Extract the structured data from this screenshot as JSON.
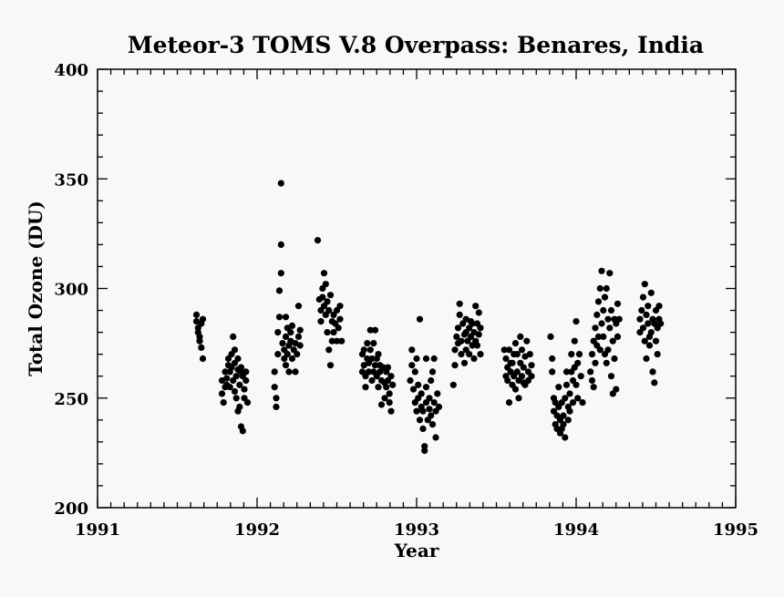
{
  "chart_data": {
    "type": "scatter",
    "title": "Meteor-3 TOMS V.8 Overpass: Benares, India",
    "xlabel": "Year",
    "ylabel": "Total Ozone (DU)",
    "xlim": [
      1991,
      1995
    ],
    "ylim": [
      200,
      400
    ],
    "x_ticks": [
      1991,
      1992,
      1993,
      1994,
      1995
    ],
    "y_ticks": [
      200,
      250,
      300,
      350,
      400
    ],
    "x_tick_labels": [
      "1991",
      "1992",
      "1993",
      "1994",
      "1995"
    ],
    "y_tick_labels": [
      "200",
      "250",
      "300",
      "350",
      "400"
    ],
    "grid": false,
    "legend": "none",
    "marker_color": "#000000",
    "points": [
      [
        1991.62,
        288
      ],
      [
        1991.62,
        285
      ],
      [
        1991.63,
        282
      ],
      [
        1991.63,
        280
      ],
      [
        1991.64,
        278
      ],
      [
        1991.64,
        276
      ],
      [
        1991.65,
        284
      ],
      [
        1991.65,
        273
      ],
      [
        1991.66,
        268
      ],
      [
        1991.66,
        286
      ],
      [
        1991.78,
        258
      ],
      [
        1991.78,
        252
      ],
      [
        1991.79,
        248
      ],
      [
        1991.8,
        255
      ],
      [
        1991.8,
        262
      ],
      [
        1991.81,
        259
      ],
      [
        1991.82,
        265
      ],
      [
        1991.82,
        268
      ],
      [
        1991.83,
        262
      ],
      [
        1991.83,
        255
      ],
      [
        1991.84,
        270
      ],
      [
        1991.84,
        264
      ],
      [
        1991.85,
        278
      ],
      [
        1991.85,
        258
      ],
      [
        1991.86,
        266
      ],
      [
        1991.86,
        272
      ],
      [
        1991.87,
        260
      ],
      [
        1991.87,
        250
      ],
      [
        1991.88,
        263
      ],
      [
        1991.88,
        268
      ],
      [
        1991.89,
        256
      ],
      [
        1991.89,
        246
      ],
      [
        1991.9,
        262
      ],
      [
        1991.9,
        237
      ],
      [
        1991.91,
        235
      ],
      [
        1991.91,
        260
      ],
      [
        1991.92,
        254
      ],
      [
        1991.92,
        250
      ],
      [
        1991.93,
        258
      ],
      [
        1991.94,
        248
      ],
      [
        1991.81,
        256
      ],
      [
        1991.86,
        253
      ],
      [
        1991.88,
        244
      ],
      [
        1991.9,
        264
      ],
      [
        1991.93,
        262
      ],
      [
        1992.11,
        262
      ],
      [
        1992.11,
        255
      ],
      [
        1992.12,
        250
      ],
      [
        1992.12,
        246
      ],
      [
        1992.13,
        270
      ],
      [
        1992.13,
        280
      ],
      [
        1992.14,
        287
      ],
      [
        1992.14,
        299
      ],
      [
        1992.15,
        307
      ],
      [
        1992.15,
        320
      ],
      [
        1992.15,
        348
      ],
      [
        1992.16,
        275
      ],
      [
        1992.17,
        272
      ],
      [
        1992.17,
        268
      ],
      [
        1992.18,
        265
      ],
      [
        1992.18,
        278
      ],
      [
        1992.19,
        282
      ],
      [
        1992.19,
        270
      ],
      [
        1992.2,
        274
      ],
      [
        1992.2,
        262
      ],
      [
        1992.21,
        280
      ],
      [
        1992.21,
        276
      ],
      [
        1992.22,
        283
      ],
      [
        1992.22,
        268
      ],
      [
        1992.23,
        272
      ],
      [
        1992.24,
        275
      ],
      [
        1992.24,
        262
      ],
      [
        1992.25,
        270
      ],
      [
        1992.26,
        278
      ],
      [
        1992.26,
        292
      ],
      [
        1992.27,
        281
      ],
      [
        1992.27,
        274
      ],
      [
        1992.18,
        287
      ],
      [
        1992.38,
        322
      ],
      [
        1992.39,
        295
      ],
      [
        1992.4,
        290
      ],
      [
        1992.4,
        285
      ],
      [
        1992.41,
        300
      ],
      [
        1992.41,
        296
      ],
      [
        1992.42,
        307
      ],
      [
        1992.42,
        292
      ],
      [
        1992.43,
        288
      ],
      [
        1992.43,
        302
      ],
      [
        1992.44,
        294
      ],
      [
        1992.44,
        280
      ],
      [
        1992.45,
        272
      ],
      [
        1992.45,
        290
      ],
      [
        1992.46,
        297
      ],
      [
        1992.46,
        265
      ],
      [
        1992.47,
        285
      ],
      [
        1992.47,
        276
      ],
      [
        1992.48,
        288
      ],
      [
        1992.48,
        280
      ],
      [
        1992.49,
        284
      ],
      [
        1992.5,
        290
      ],
      [
        1992.5,
        276
      ],
      [
        1992.51,
        282
      ],
      [
        1992.52,
        286
      ],
      [
        1992.52,
        292
      ],
      [
        1992.53,
        276
      ],
      [
        1992.66,
        270
      ],
      [
        1992.66,
        262
      ],
      [
        1992.67,
        265
      ],
      [
        1992.67,
        272
      ],
      [
        1992.68,
        260
      ],
      [
        1992.68,
        255
      ],
      [
        1992.69,
        268
      ],
      [
        1992.69,
        275
      ],
      [
        1992.7,
        266
      ],
      [
        1992.7,
        262
      ],
      [
        1992.71,
        281
      ],
      [
        1992.71,
        272
      ],
      [
        1992.72,
        268
      ],
      [
        1992.72,
        258
      ],
      [
        1992.73,
        275
      ],
      [
        1992.74,
        265
      ],
      [
        1992.74,
        281
      ],
      [
        1992.75,
        268
      ],
      [
        1992.75,
        260
      ],
      [
        1992.76,
        255
      ],
      [
        1992.77,
        262
      ],
      [
        1992.77,
        265
      ],
      [
        1992.78,
        258
      ],
      [
        1992.78,
        247
      ],
      [
        1992.79,
        264
      ],
      [
        1992.8,
        257
      ],
      [
        1992.8,
        250
      ],
      [
        1992.81,
        262
      ],
      [
        1992.81,
        255
      ],
      [
        1992.82,
        258
      ],
      [
        1992.83,
        252
      ],
      [
        1992.83,
        248
      ],
      [
        1992.84,
        244
      ],
      [
        1992.84,
        260
      ],
      [
        1992.85,
        256
      ],
      [
        1992.73,
        262
      ],
      [
        1992.76,
        270
      ],
      [
        1992.82,
        264
      ],
      [
        1992.96,
        258
      ],
      [
        1992.97,
        265
      ],
      [
        1992.97,
        272
      ],
      [
        1992.98,
        254
      ],
      [
        1992.99,
        248
      ],
      [
        1992.99,
        262
      ],
      [
        1993.0,
        244
      ],
      [
        1993.01,
        250
      ],
      [
        1993.01,
        256
      ],
      [
        1993.02,
        286
      ],
      [
        1993.02,
        240
      ],
      [
        1993.03,
        246
      ],
      [
        1993.03,
        252
      ],
      [
        1993.04,
        236
      ],
      [
        1993.04,
        244
      ],
      [
        1993.05,
        226
      ],
      [
        1993.05,
        228
      ],
      [
        1993.06,
        248
      ],
      [
        1993.06,
        255
      ],
      [
        1993.07,
        240
      ],
      [
        1993.08,
        245
      ],
      [
        1993.08,
        250
      ],
      [
        1993.09,
        258
      ],
      [
        1993.09,
        242
      ],
      [
        1993.1,
        238
      ],
      [
        1993.1,
        262
      ],
      [
        1993.11,
        248
      ],
      [
        1993.12,
        244
      ],
      [
        1993.12,
        232
      ],
      [
        1993.13,
        252
      ],
      [
        1993.14,
        246
      ],
      [
        1993.0,
        268
      ],
      [
        1993.06,
        268
      ],
      [
        1993.11,
        268
      ],
      [
        1993.23,
        256
      ],
      [
        1993.24,
        265
      ],
      [
        1993.24,
        272
      ],
      [
        1993.25,
        278
      ],
      [
        1993.26,
        282
      ],
      [
        1993.26,
        275
      ],
      [
        1993.27,
        288
      ],
      [
        1993.27,
        293
      ],
      [
        1993.28,
        276
      ],
      [
        1993.28,
        270
      ],
      [
        1993.29,
        284
      ],
      [
        1993.3,
        279
      ],
      [
        1993.3,
        266
      ],
      [
        1993.31,
        272
      ],
      [
        1993.31,
        286
      ],
      [
        1993.32,
        276
      ],
      [
        1993.33,
        282
      ],
      [
        1993.33,
        270
      ],
      [
        1993.34,
        278
      ],
      [
        1993.34,
        285
      ],
      [
        1993.35,
        274
      ],
      [
        1993.36,
        280
      ],
      [
        1993.36,
        268
      ],
      [
        1993.37,
        276
      ],
      [
        1993.37,
        292
      ],
      [
        1993.38,
        284
      ],
      [
        1993.39,
        279
      ],
      [
        1993.39,
        289
      ],
      [
        1993.4,
        270
      ],
      [
        1993.4,
        282
      ],
      [
        1993.31,
        280
      ],
      [
        1993.35,
        284
      ],
      [
        1993.38,
        274
      ],
      [
        1993.55,
        272
      ],
      [
        1993.56,
        268
      ],
      [
        1993.56,
        260
      ],
      [
        1993.57,
        264
      ],
      [
        1993.57,
        258
      ],
      [
        1993.58,
        272
      ],
      [
        1993.58,
        248
      ],
      [
        1993.59,
        262
      ],
      [
        1993.6,
        256
      ],
      [
        1993.6,
        266
      ],
      [
        1993.61,
        270
      ],
      [
        1993.61,
        260
      ],
      [
        1993.62,
        254
      ],
      [
        1993.62,
        275
      ],
      [
        1993.63,
        262
      ],
      [
        1993.64,
        258
      ],
      [
        1993.64,
        250
      ],
      [
        1993.65,
        266
      ],
      [
        1993.65,
        278
      ],
      [
        1993.66,
        260
      ],
      [
        1993.66,
        272
      ],
      [
        1993.67,
        264
      ],
      [
        1993.68,
        256
      ],
      [
        1993.68,
        269
      ],
      [
        1993.69,
        276
      ],
      [
        1993.7,
        262
      ],
      [
        1993.7,
        258
      ],
      [
        1993.71,
        270
      ],
      [
        1993.72,
        265
      ],
      [
        1993.72,
        260
      ],
      [
        1993.59,
        266
      ],
      [
        1993.63,
        270
      ],
      [
        1993.67,
        257
      ],
      [
        1993.84,
        278
      ],
      [
        1993.85,
        268
      ],
      [
        1993.85,
        262
      ],
      [
        1993.86,
        250
      ],
      [
        1993.86,
        244
      ],
      [
        1993.87,
        248
      ],
      [
        1993.87,
        238
      ],
      [
        1993.88,
        242
      ],
      [
        1993.88,
        236
      ],
      [
        1993.89,
        246
      ],
      [
        1993.89,
        255
      ],
      [
        1993.9,
        240
      ],
      [
        1993.9,
        234
      ],
      [
        1993.91,
        248
      ],
      [
        1993.92,
        238
      ],
      [
        1993.92,
        242
      ],
      [
        1993.93,
        232
      ],
      [
        1993.93,
        250
      ],
      [
        1993.94,
        262
      ],
      [
        1993.94,
        256
      ],
      [
        1993.95,
        240
      ],
      [
        1993.95,
        246
      ],
      [
        1993.96,
        252
      ],
      [
        1993.97,
        262
      ],
      [
        1993.97,
        270
      ],
      [
        1993.98,
        258
      ],
      [
        1993.98,
        248
      ],
      [
        1993.99,
        276
      ],
      [
        1993.99,
        264
      ],
      [
        1994.0,
        285
      ],
      [
        1994.0,
        256
      ],
      [
        1994.01,
        266
      ],
      [
        1994.01,
        250
      ],
      [
        1994.02,
        270
      ],
      [
        1994.03,
        260
      ],
      [
        1994.04,
        248
      ],
      [
        1993.91,
        236
      ],
      [
        1993.96,
        244
      ],
      [
        1994.09,
        262
      ],
      [
        1994.1,
        258
      ],
      [
        1994.1,
        270
      ],
      [
        1994.11,
        276
      ],
      [
        1994.11,
        255
      ],
      [
        1994.12,
        282
      ],
      [
        1994.12,
        266
      ],
      [
        1994.13,
        288
      ],
      [
        1994.13,
        274
      ],
      [
        1994.14,
        278
      ],
      [
        1994.14,
        294
      ],
      [
        1994.15,
        272
      ],
      [
        1994.15,
        300
      ],
      [
        1994.16,
        308
      ],
      [
        1994.16,
        284
      ],
      [
        1994.17,
        278
      ],
      [
        1994.17,
        290
      ],
      [
        1994.18,
        270
      ],
      [
        1994.18,
        296
      ],
      [
        1994.19,
        266
      ],
      [
        1994.19,
        300
      ],
      [
        1994.2,
        286
      ],
      [
        1994.2,
        272
      ],
      [
        1994.21,
        307
      ],
      [
        1994.21,
        282
      ],
      [
        1994.22,
        290
      ],
      [
        1994.22,
        260
      ],
      [
        1994.23,
        252
      ],
      [
        1994.23,
        276
      ],
      [
        1994.24,
        286
      ],
      [
        1994.24,
        268
      ],
      [
        1994.25,
        284
      ],
      [
        1994.25,
        254
      ],
      [
        1994.26,
        293
      ],
      [
        1994.26,
        278
      ],
      [
        1994.27,
        286
      ],
      [
        1994.4,
        280
      ],
      [
        1994.4,
        286
      ],
      [
        1994.41,
        290
      ],
      [
        1994.42,
        296
      ],
      [
        1994.42,
        282
      ],
      [
        1994.43,
        276
      ],
      [
        1994.43,
        302
      ],
      [
        1994.44,
        288
      ],
      [
        1994.44,
        268
      ],
      [
        1994.45,
        284
      ],
      [
        1994.45,
        292
      ],
      [
        1994.46,
        278
      ],
      [
        1994.46,
        274
      ],
      [
        1994.47,
        280
      ],
      [
        1994.47,
        298
      ],
      [
        1994.48,
        286
      ],
      [
        1994.48,
        262
      ],
      [
        1994.49,
        284
      ],
      [
        1994.49,
        257
      ],
      [
        1994.5,
        276
      ],
      [
        1994.5,
        290
      ],
      [
        1994.51,
        270
      ],
      [
        1994.51,
        282
      ],
      [
        1994.52,
        292
      ],
      [
        1994.52,
        286
      ],
      [
        1994.53,
        284
      ]
    ]
  }
}
